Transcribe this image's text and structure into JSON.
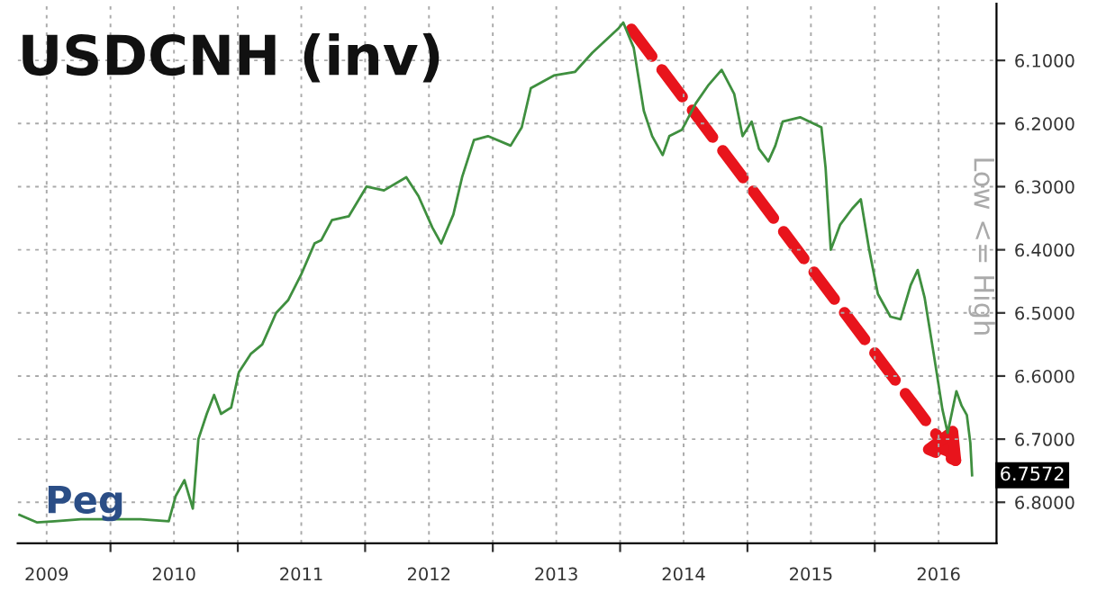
{
  "chart_data": {
    "type": "line",
    "title": "USDCNH (inv)",
    "ylabel": "Low <= High",
    "x": [
      "2009-04-15",
      "2009-06-05",
      "2009-07-25",
      "2009-10-08",
      "2009-12-22",
      "2010-03-28",
      "2010-06-17",
      "2010-07-07",
      "2010-08-01",
      "2010-08-25",
      "2010-09-10",
      "2010-10-04",
      "2010-10-25",
      "2010-11-14",
      "2010-12-13",
      "2011-01-04",
      "2011-02-07",
      "2011-03-12",
      "2011-04-21",
      "2011-05-25",
      "2011-07-01",
      "2011-08-09",
      "2011-08-28",
      "2011-09-28",
      "2011-11-15",
      "2012-01-05",
      "2012-02-24",
      "2012-04-28",
      "2012-06-02",
      "2012-07-12",
      "2012-08-06",
      "2012-09-10",
      "2012-10-05",
      "2012-11-08",
      "2012-12-18",
      "2013-02-21",
      "2013-03-25",
      "2013-04-20",
      "2013-06-25",
      "2013-08-25",
      "2013-10-13",
      "2013-12-26",
      "2014-01-10",
      "2014-02-09",
      "2014-03-10",
      "2014-04-03",
      "2014-05-03",
      "2014-05-22",
      "2014-06-27",
      "2014-08-06",
      "2014-09-10",
      "2014-10-19",
      "2014-11-24",
      "2014-12-18",
      "2015-01-13",
      "2015-02-03",
      "2015-03-02",
      "2015-03-22",
      "2015-04-12",
      "2015-06-01",
      "2015-08-01",
      "2015-08-13",
      "2015-08-18",
      "2015-08-28",
      "2015-09-24",
      "2015-10-28",
      "2015-11-22",
      "2015-12-16",
      "2016-01-10",
      "2016-02-15",
      "2016-03-15",
      "2016-04-13",
      "2016-05-03",
      "2016-05-23",
      "2016-06-18",
      "2016-07-13",
      "2016-07-28",
      "2016-08-22",
      "2016-09-06",
      "2016-09-21",
      "2016-10-01",
      "2016-10-06"
    ],
    "series": [
      {
        "color": "#3f8f3f",
        "values": [
          6.82,
          6.832,
          6.83,
          6.827,
          6.827,
          6.827,
          6.83,
          6.79,
          6.765,
          6.81,
          6.7,
          6.66,
          6.63,
          6.66,
          6.65,
          6.594,
          6.565,
          6.55,
          6.5,
          6.48,
          6.44,
          6.39,
          6.385,
          6.353,
          6.347,
          6.3,
          6.306,
          6.285,
          6.315,
          6.365,
          6.39,
          6.344,
          6.285,
          6.226,
          6.22,
          6.235,
          6.206,
          6.144,
          6.124,
          6.118,
          6.088,
          6.05,
          6.04,
          6.08,
          6.18,
          6.22,
          6.25,
          6.22,
          6.21,
          6.168,
          6.14,
          6.115,
          6.153,
          6.22,
          6.197,
          6.24,
          6.26,
          6.235,
          6.197,
          6.19,
          6.206,
          6.27,
          6.315,
          6.4,
          6.36,
          6.335,
          6.32,
          6.4,
          6.47,
          6.506,
          6.51,
          6.456,
          6.432,
          6.476,
          6.565,
          6.653,
          6.69,
          6.624,
          6.647,
          6.662,
          6.706,
          6.7572
        ]
      }
    ],
    "xlim": [
      "2009-04-10",
      "2016-12-15"
    ],
    "xticks": [
      {
        "value": "2009-07-02",
        "label": "2009"
      },
      {
        "value": "2010-01-01",
        "label": null
      },
      {
        "value": "2010-07-02",
        "label": "2010"
      },
      {
        "value": "2011-01-01",
        "label": null
      },
      {
        "value": "2011-07-02",
        "label": "2011"
      },
      {
        "value": "2012-01-01",
        "label": null
      },
      {
        "value": "2012-07-02",
        "label": "2012"
      },
      {
        "value": "2013-01-01",
        "label": null
      },
      {
        "value": "2013-07-02",
        "label": "2013"
      },
      {
        "value": "2014-01-01",
        "label": null
      },
      {
        "value": "2014-07-02",
        "label": "2014"
      },
      {
        "value": "2015-01-01",
        "label": null
      },
      {
        "value": "2015-07-02",
        "label": "2015"
      },
      {
        "value": "2016-01-01",
        "label": null
      },
      {
        "value": "2016-07-02",
        "label": "2016"
      }
    ],
    "ylim": [
      6.865,
      6.01
    ],
    "yticks": [
      {
        "value": 6.1,
        "label": "6.1000"
      },
      {
        "value": 6.2,
        "label": "6.2000"
      },
      {
        "value": 6.3,
        "label": "6.3000"
      },
      {
        "value": 6.4,
        "label": "6.4000"
      },
      {
        "value": 6.5,
        "label": "6.5000"
      },
      {
        "value": 6.6,
        "label": "6.6000"
      },
      {
        "value": 6.7,
        "label": "6.7000"
      },
      {
        "value": 6.8,
        "label": "6.8000"
      }
    ],
    "grid": true,
    "legend": false,
    "line_style": "solid",
    "marker": "none",
    "annotations": [
      {
        "text": "Peg",
        "x": "2009-10-20",
        "y": 6.83
      },
      {
        "text": "6.7572",
        "x": "2016-10-06",
        "y": 6.7572
      }
    ]
  }
}
